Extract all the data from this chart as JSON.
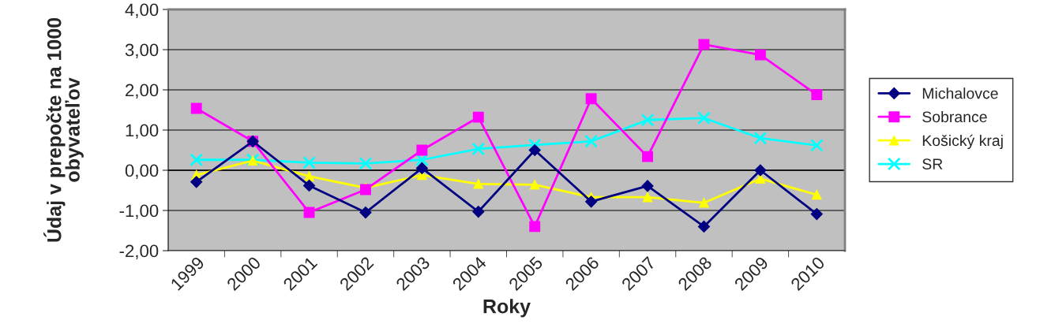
{
  "chart_data": {
    "type": "line",
    "xlabel": "Roky",
    "ylabel": "Údaj v prepočte na 1000\nobyvateľov",
    "categories": [
      "1999",
      "2000",
      "2001",
      "2002",
      "2003",
      "2004",
      "2005",
      "2006",
      "2007",
      "2008",
      "2009",
      "2010"
    ],
    "series": [
      {
        "name": "Michalovce",
        "color": "#000080",
        "marker": "diamond",
        "values": [
          -0.29,
          0.72,
          -0.38,
          -1.05,
          0.05,
          -1.03,
          0.5,
          -0.78,
          -0.39,
          -1.4,
          0.0,
          -1.09
        ]
      },
      {
        "name": "Sobrance",
        "color": "#ff00ff",
        "marker": "square",
        "values": [
          1.54,
          0.72,
          -1.05,
          -0.48,
          0.5,
          1.32,
          -1.4,
          1.78,
          0.34,
          3.13,
          2.87,
          1.88
        ]
      },
      {
        "name": "Košický kraj",
        "color": "#ffff00",
        "marker": "triangle",
        "values": [
          -0.12,
          0.24,
          -0.15,
          -0.44,
          -0.12,
          -0.34,
          -0.36,
          -0.67,
          -0.67,
          -0.81,
          -0.21,
          -0.61
        ]
      },
      {
        "name": "SR",
        "color": "#00ffff",
        "marker": "cross",
        "values": [
          0.26,
          0.26,
          0.19,
          0.17,
          0.26,
          0.53,
          0.63,
          0.72,
          1.25,
          1.3,
          0.8,
          0.62
        ]
      }
    ],
    "ylim": [
      -2,
      4
    ],
    "yticks": [
      {
        "value": -2,
        "label": "-2,00"
      },
      {
        "value": -1,
        "label": "-1,00"
      },
      {
        "value": 0,
        "label": "0,00"
      },
      {
        "value": 1,
        "label": "1,00"
      },
      {
        "value": 2,
        "label": "2,00"
      },
      {
        "value": 3,
        "label": "3,00"
      },
      {
        "value": 4,
        "label": "4,00"
      }
    ],
    "grid": "y",
    "legend": "right",
    "line_style": "solid"
  }
}
